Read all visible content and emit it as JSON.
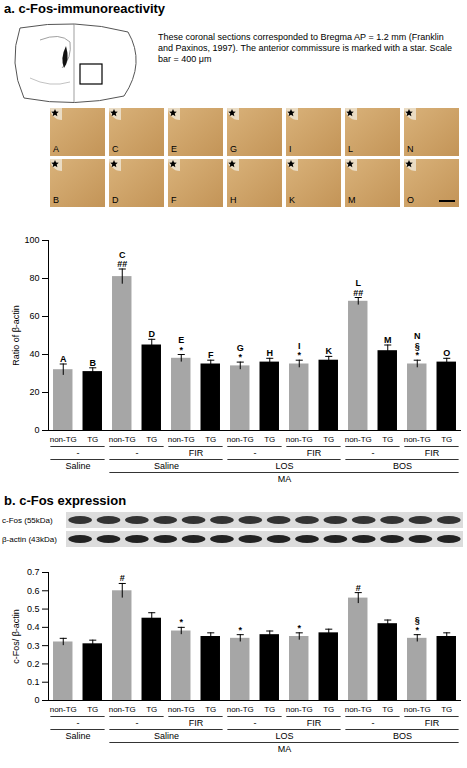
{
  "chart_data": [
    {
      "type": "bar",
      "title": "a. c-Fos-immunoreactivity",
      "image_caption": "These coronal sections corresponded to Bregma AP = 1.2 mm (Franklin and Paxinos, 1997). The anterior commissure is marked with a star. Scale bar = 400 μm",
      "image_letters": [
        [
          "A",
          "C",
          "E",
          "G",
          "I",
          "L",
          "N"
        ],
        [
          "B",
          "D",
          "F",
          "H",
          "K",
          "M",
          "O"
        ]
      ],
      "categories": [
        "non-TG",
        "TG",
        "non-TG",
        "TG",
        "non-TG",
        "TG",
        "non-TG",
        "TG",
        "non-TG",
        "TG",
        "non-TG",
        "TG",
        "non-TG",
        "TG"
      ],
      "x_groups": [
        [
          {
            "label": "-",
            "start": 0,
            "span": 2
          },
          {
            "label": "-",
            "start": 2,
            "span": 2
          },
          {
            "label": "FIR",
            "start": 4,
            "span": 2
          },
          {
            "label": "-",
            "start": 6,
            "span": 2
          },
          {
            "label": "FIR",
            "start": 8,
            "span": 2
          },
          {
            "label": "-",
            "start": 10,
            "span": 2
          },
          {
            "label": "FIR",
            "start": 12,
            "span": 2
          }
        ],
        [
          {
            "label": "Saline",
            "start": 0,
            "span": 2
          },
          {
            "label": "Saline",
            "start": 2,
            "span": 4
          },
          {
            "label": "LOS",
            "start": 6,
            "span": 4
          },
          {
            "label": "BOS",
            "start": 10,
            "span": 4
          }
        ],
        [
          {
            "label": "MA",
            "start": 2,
            "span": 12
          }
        ]
      ],
      "values": [
        32,
        31,
        81,
        45,
        38,
        35,
        34,
        36,
        35,
        37,
        68,
        42,
        35,
        36
      ],
      "errors": [
        3,
        2,
        4,
        3,
        2,
        2,
        2,
        2,
        2,
        2,
        2,
        3,
        2,
        2
      ],
      "colors": [
        "#a6a6a6",
        "#000000",
        "#a6a6a6",
        "#000000",
        "#a6a6a6",
        "#000000",
        "#a6a6a6",
        "#000000",
        "#a6a6a6",
        "#000000",
        "#a6a6a6",
        "#000000",
        "#a6a6a6",
        "#000000"
      ],
      "bar_labels": [
        "A",
        "B",
        "C",
        "D",
        "E",
        "F",
        "G",
        "H",
        "I",
        "K",
        "L",
        "M",
        "N",
        "O"
      ],
      "significance": [
        null,
        null,
        [
          "##"
        ],
        null,
        [
          "*"
        ],
        null,
        [
          "*"
        ],
        null,
        [
          "*"
        ],
        null,
        [
          "##"
        ],
        null,
        [
          "§",
          "*"
        ],
        null
      ],
      "ylabel": "Ratio of β-actin",
      "ylim": [
        0,
        100
      ],
      "yticks": [
        0,
        20,
        40,
        60,
        80,
        100
      ]
    },
    {
      "type": "bar",
      "title": "b. c-Fos expression",
      "blot_labels": [
        "c-Fos (55kDa)",
        "β-actin (43kDa)"
      ],
      "categories": [
        "non-TG",
        "TG",
        "non-TG",
        "TG",
        "non-TG",
        "TG",
        "non-TG",
        "TG",
        "non-TG",
        "TG",
        "non-TG",
        "TG",
        "non-TG",
        "TG"
      ],
      "x_groups": [
        [
          {
            "label": "-",
            "start": 0,
            "span": 2
          },
          {
            "label": "-",
            "start": 2,
            "span": 2
          },
          {
            "label": "FIR",
            "start": 4,
            "span": 2
          },
          {
            "label": "-",
            "start": 6,
            "span": 2
          },
          {
            "label": "FIR",
            "start": 8,
            "span": 2
          },
          {
            "label": "-",
            "start": 10,
            "span": 2
          },
          {
            "label": "FIR",
            "start": 12,
            "span": 2
          }
        ],
        [
          {
            "label": "Saline",
            "start": 0,
            "span": 2
          },
          {
            "label": "Saline",
            "start": 2,
            "span": 4
          },
          {
            "label": "LOS",
            "start": 6,
            "span": 4
          },
          {
            "label": "BOS",
            "start": 10,
            "span": 4
          }
        ],
        [
          {
            "label": "MA",
            "start": 2,
            "span": 12
          }
        ]
      ],
      "values": [
        0.32,
        0.31,
        0.6,
        0.45,
        0.38,
        0.35,
        0.34,
        0.36,
        0.35,
        0.37,
        0.56,
        0.42,
        0.34,
        0.35
      ],
      "errors": [
        0.02,
        0.02,
        0.04,
        0.03,
        0.02,
        0.02,
        0.02,
        0.02,
        0.02,
        0.02,
        0.03,
        0.02,
        0.02,
        0.02
      ],
      "colors": [
        "#a6a6a6",
        "#000000",
        "#a6a6a6",
        "#000000",
        "#a6a6a6",
        "#000000",
        "#a6a6a6",
        "#000000",
        "#a6a6a6",
        "#000000",
        "#a6a6a6",
        "#000000",
        "#a6a6a6",
        "#000000"
      ],
      "significance": [
        null,
        null,
        [
          "#"
        ],
        null,
        [
          "*"
        ],
        null,
        [
          "*"
        ],
        null,
        [
          "*"
        ],
        null,
        [
          "#"
        ],
        null,
        [
          "§",
          "*"
        ],
        null
      ],
      "ylabel": "c-Fos/ β-actin",
      "ylim": [
        0,
        0.7
      ],
      "yticks": [
        0,
        0.1,
        0.2,
        0.3,
        0.4,
        0.5,
        0.6,
        0.7
      ]
    }
  ]
}
